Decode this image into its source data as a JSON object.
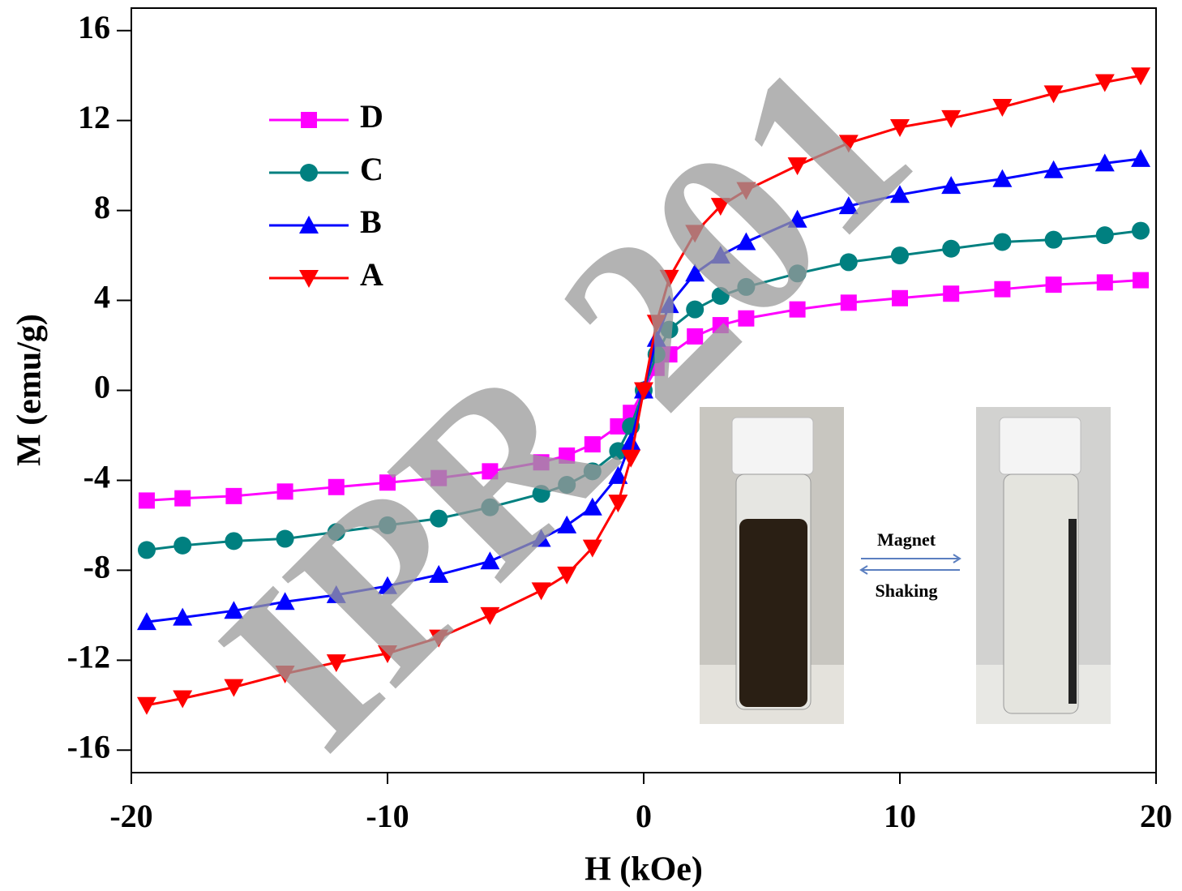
{
  "chart_data": {
    "type": "line",
    "x_label": "H (kOe)",
    "y_label": "M (emu/g)",
    "xlim": [
      -20,
      20
    ],
    "xticks": [
      -20,
      -10,
      0,
      10,
      20
    ],
    "ylim": [
      -17,
      17
    ],
    "yticks": [
      -16,
      -12,
      -8,
      -4,
      0,
      4,
      8,
      12,
      16
    ],
    "legend": "upper left",
    "x": [
      -19.4,
      -18,
      -16,
      -14,
      -12,
      -10,
      -8,
      -6,
      -4,
      -3,
      -2,
      -1,
      -0.5,
      0,
      0.5,
      1,
      2,
      3,
      4,
      6,
      8,
      10,
      12,
      14,
      16,
      18,
      19.4
    ],
    "series": [
      {
        "name": "D",
        "color": "#ff00ff",
        "marker": "square",
        "values": [
          -4.9,
          -4.8,
          -4.7,
          -4.5,
          -4.3,
          -4.1,
          -3.9,
          -3.6,
          -3.2,
          -2.9,
          -2.4,
          -1.6,
          -1.0,
          0,
          1.0,
          1.6,
          2.4,
          2.9,
          3.2,
          3.6,
          3.9,
          4.1,
          4.3,
          4.5,
          4.7,
          4.8,
          4.9
        ]
      },
      {
        "name": "C",
        "color": "#008080",
        "marker": "circle",
        "values": [
          -7.1,
          -6.9,
          -6.7,
          -6.6,
          -6.3,
          -6.0,
          -5.7,
          -5.2,
          -4.6,
          -4.2,
          -3.6,
          -2.7,
          -1.6,
          0,
          1.6,
          2.7,
          3.6,
          4.2,
          4.6,
          5.2,
          5.7,
          6.0,
          6.3,
          6.6,
          6.7,
          6.9,
          7.1
        ]
      },
      {
        "name": "B",
        "color": "#0000ff",
        "marker": "triangle-up",
        "values": [
          -10.3,
          -10.1,
          -9.8,
          -9.4,
          -9.1,
          -8.7,
          -8.2,
          -7.6,
          -6.6,
          -6.0,
          -5.2,
          -3.8,
          -2.3,
          0,
          2.3,
          3.8,
          5.2,
          6.0,
          6.6,
          7.6,
          8.2,
          8.7,
          9.1,
          9.4,
          9.8,
          10.1,
          10.3
        ]
      },
      {
        "name": "A",
        "color": "#ff0000",
        "marker": "triangle-down",
        "values": [
          -14.0,
          -13.7,
          -13.2,
          -12.6,
          -12.1,
          -11.7,
          -11.0,
          -10.0,
          -8.9,
          -8.2,
          -7.0,
          -5.0,
          -3.0,
          0,
          3.0,
          5.0,
          7.0,
          8.2,
          8.9,
          10.0,
          11.0,
          11.7,
          12.1,
          12.6,
          13.2,
          13.7,
          14.0
        ]
      }
    ],
    "inset_labels": [
      "Magnet",
      "Shaking"
    ],
    "watermark": "IPR 201"
  }
}
